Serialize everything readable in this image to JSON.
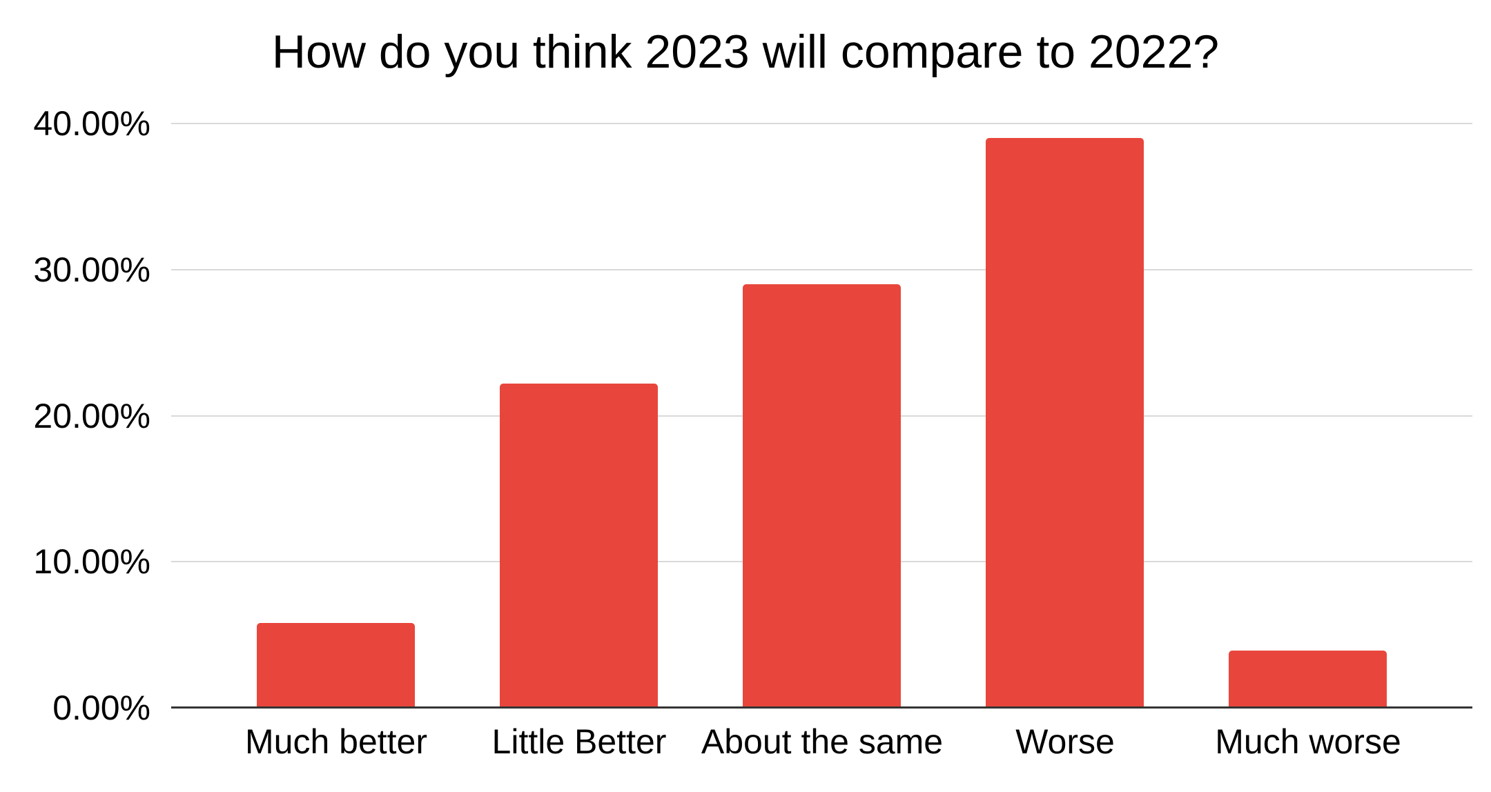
{
  "chart_data": {
    "type": "bar",
    "title": "How do you think 2023 will compare to 2022?",
    "categories": [
      "Much better",
      "Little Better",
      "About the same",
      "Worse",
      "Much worse"
    ],
    "values": [
      5.8,
      22.2,
      29.0,
      39.0,
      3.9
    ],
    "value_unit": "percent",
    "xlabel": "",
    "ylabel": "",
    "ylim": [
      0,
      40
    ],
    "y_ticks": [
      0,
      10,
      20,
      30,
      40
    ],
    "y_tick_labels": [
      "0.00%",
      "10.00%",
      "20.00%",
      "30.00%",
      "40.00%"
    ],
    "grid": "horizontal",
    "legend": "none",
    "colors": {
      "bar": "#E8463C",
      "gridline": "#D9D9D9",
      "axis_line": "#333333",
      "text": "#000000",
      "background": "#FFFFFF"
    }
  }
}
